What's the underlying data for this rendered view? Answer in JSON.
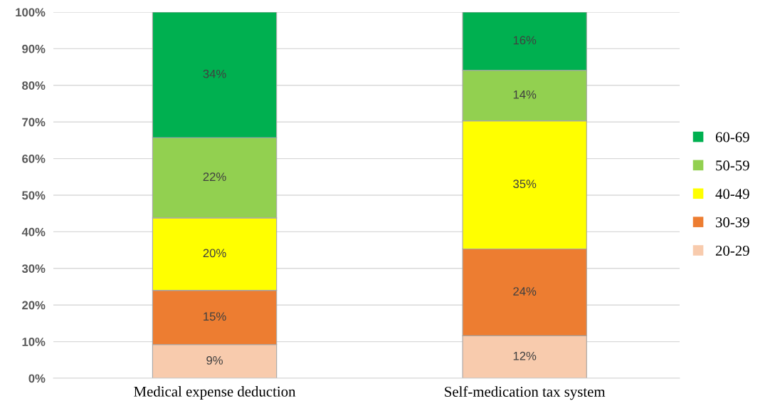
{
  "chart_data": {
    "type": "bar",
    "stacked": true,
    "categories": [
      "Medical expense deduction",
      "Self-medication tax system"
    ],
    "series": [
      {
        "name": "20-29",
        "color": "#f8cbad",
        "values": [
          9.2,
          11.6
        ],
        "value_labels": [
          "9%",
          "12%"
        ]
      },
      {
        "name": "30-39",
        "color": "#ed7d31",
        "values": [
          14.8,
          23.7
        ],
        "value_labels": [
          "15%",
          "24%"
        ]
      },
      {
        "name": "40-49",
        "color": "#ffff00",
        "values": [
          19.8,
          35.0
        ],
        "value_labels": [
          "20%",
          "35%"
        ]
      },
      {
        "name": "50-59",
        "color": "#92d050",
        "values": [
          21.9,
          13.8
        ],
        "value_labels": [
          "22%",
          "14%"
        ]
      },
      {
        "name": "60-69",
        "color": "#00b050",
        "values": [
          34.3,
          15.9
        ],
        "value_labels": [
          "34%",
          "16%"
        ]
      }
    ],
    "ylim": [
      0,
      100
    ],
    "yticks": [
      {
        "value": 0,
        "label": "0%"
      },
      {
        "value": 10,
        "label": "10%"
      },
      {
        "value": 20,
        "label": "20%"
      },
      {
        "value": 30,
        "label": "30%"
      },
      {
        "value": 40,
        "label": "40%"
      },
      {
        "value": 50,
        "label": "50%"
      },
      {
        "value": 60,
        "label": "60%"
      },
      {
        "value": 70,
        "label": "70%"
      },
      {
        "value": 80,
        "label": "80%"
      },
      {
        "value": 90,
        "label": "90%"
      },
      {
        "value": 100,
        "label": "100%"
      }
    ],
    "grid": "y",
    "legend": "right"
  }
}
